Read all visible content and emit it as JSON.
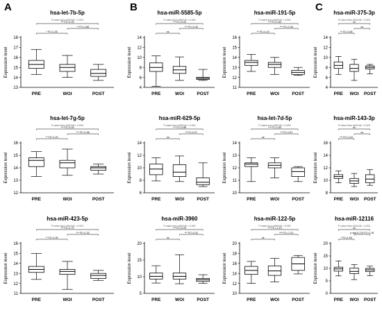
{
  "panels": [
    {
      "letter": "A"
    },
    {
      "letter": "B"
    },
    {
      "letter": "C"
    }
  ],
  "chart_data": [
    {
      "type": "boxplot",
      "title": "hsa-let-7b-5p",
      "subtitle": "P-value from ANOVA < 0.001",
      "ylabel": "Expression level",
      "categories": [
        "PRE",
        "WOI",
        "POST"
      ],
      "yticks": [
        13,
        14,
        15,
        16,
        17,
        18
      ],
      "ylim": [
        13,
        18
      ],
      "boxes": [
        [
          14.3,
          14.9,
          15.3,
          15.7,
          16.8
        ],
        [
          14.0,
          14.6,
          15.0,
          15.3,
          16.2
        ],
        [
          13.7,
          14.1,
          14.4,
          14.8,
          15.3
        ]
      ],
      "annotations": [
        "*** FC=1.92",
        "** FC=1.68",
        "* FC=1.30"
      ]
    },
    {
      "type": "boxplot",
      "title": "hsa-let-7g-5p",
      "subtitle": "P-value from ANOVA < 0.001",
      "ylabel": "Expression level",
      "categories": [
        "PRE",
        "WOI",
        "POST"
      ],
      "yticks": [
        12,
        13,
        14,
        15,
        16
      ],
      "ylim": [
        12,
        16
      ],
      "boxes": [
        [
          13.3,
          14.1,
          14.6,
          14.8,
          15.3
        ],
        [
          13.4,
          14.0,
          14.4,
          14.6,
          15.5
        ],
        [
          13.5,
          13.8,
          14.0,
          14.1,
          14.3
        ]
      ],
      "annotations": [
        "*** FC=1.93",
        "*** FC=1.56",
        "** FC=1.20"
      ]
    },
    {
      "type": "boxplot",
      "title": "hsa-miR-423-5p",
      "subtitle": "P-value from ANOVA < 0.001",
      "ylabel": "Expression level",
      "categories": [
        "PRE",
        "WOI",
        "POST"
      ],
      "yticks": [
        11,
        12,
        13,
        14,
        15,
        16
      ],
      "ylim": [
        11,
        16
      ],
      "boxes": [
        [
          12.4,
          13.1,
          13.4,
          13.7,
          15.0
        ],
        [
          11.4,
          12.9,
          13.2,
          13.4,
          14.2
        ],
        [
          12.3,
          12.5,
          12.8,
          13.0,
          13.3
        ]
      ],
      "annotations": [
        "*** FC=1.70",
        "*** FC=1.32",
        "** FC=1.30"
      ]
    },
    {
      "type": "boxplot",
      "title": "hsa-miR-5585-5p",
      "subtitle": "P-value from ANOVA < 0.001",
      "ylabel": "Expression level",
      "categories": [
        "PRE",
        "WOI",
        "POST"
      ],
      "yticks": [
        4,
        6,
        8,
        10,
        12,
        14
      ],
      "ylim": [
        4,
        14
      ],
      "boxes": [
        [
          4.2,
          7.2,
          8.0,
          8.9,
          10.3
        ],
        [
          5.4,
          6.8,
          7.5,
          8.2,
          10.1
        ],
        [
          5.4,
          5.6,
          5.8,
          6.0,
          7.6
        ]
      ],
      "annotations": [
        "*** FC=3.04",
        "*** FC=2.40",
        "ns"
      ]
    },
    {
      "type": "boxplot",
      "title": "hsa-miR-629-5p",
      "subtitle": "P-value from ANOVA < 0.001",
      "ylabel": "Expression level",
      "categories": [
        "PRE",
        "WOI",
        "POST"
      ],
      "yticks": [
        6,
        8,
        10,
        12,
        14
      ],
      "ylim": [
        6,
        14
      ],
      "boxes": [
        [
          7.9,
          8.9,
          9.8,
          10.6,
          11.6
        ],
        [
          7.8,
          8.6,
          9.3,
          10.5,
          11.9
        ],
        [
          7.0,
          7.3,
          7.7,
          8.4,
          10.8
        ]
      ],
      "annotations": [
        "*** FC=2.86",
        "** FC=2.07",
        "ns"
      ]
    },
    {
      "type": "boxplot",
      "title": "hsa-miR-3960",
      "subtitle": "P-value from ANOVA < 0.001",
      "ylabel": "Expression level",
      "categories": [
        "PRE",
        "WOI",
        "POST"
      ],
      "yticks": [
        5,
        10,
        15,
        20
      ],
      "ylim": [
        5,
        20
      ],
      "boxes": [
        [
          8.1,
          9.3,
          10.1,
          11.1,
          13.3
        ],
        [
          7.9,
          9.3,
          10.1,
          11.1,
          16.6
        ],
        [
          8.0,
          8.6,
          9.1,
          9.5,
          10.6
        ]
      ],
      "annotations": [
        "*** FC=2.03",
        "*** FC=2.02",
        "ns"
      ]
    },
    {
      "type": "boxplot",
      "title": "hsa-miR-191-5p",
      "subtitle": "P-value from ANOVA < 0.001",
      "ylabel": "Expression level",
      "categories": [
        "PRE",
        "WOI",
        "POST"
      ],
      "yticks": [
        11,
        12,
        13,
        14,
        15,
        16
      ],
      "ylim": [
        11,
        16
      ],
      "boxes": [
        [
          12.6,
          13.2,
          13.5,
          13.7,
          14.3
        ],
        [
          12.3,
          13.0,
          13.3,
          13.5,
          14.0
        ],
        [
          12.2,
          12.3,
          12.5,
          12.7,
          13.0
        ]
      ],
      "annotations": [
        "*** FC=1.83",
        "*** FC=1.54",
        "** FC=1.19"
      ]
    },
    {
      "type": "boxplot",
      "title": "hsa-let-7d-5p",
      "subtitle": "P-value from ANOVA < 0.001",
      "ylabel": "Expression level",
      "categories": [
        "PRE",
        "WOI",
        "POST"
      ],
      "yticks": [
        10,
        11,
        12,
        13,
        14
      ],
      "ylim": [
        10,
        14
      ],
      "boxes": [
        [
          10.9,
          12.1,
          12.3,
          12.4,
          12.8
        ],
        [
          11.2,
          12.0,
          12.2,
          12.4,
          12.8
        ],
        [
          10.9,
          11.3,
          11.7,
          12.0,
          12.1
        ]
      ],
      "annotations": [
        "*** FC=1.59",
        "** FC=1.51",
        "ns"
      ]
    },
    {
      "type": "boxplot",
      "title": "hsa-miR-122-5p",
      "subtitle": "P-value from ANOVA < 0.001",
      "ylabel": "Expression level",
      "categories": [
        "PRE",
        "WOI",
        "POST"
      ],
      "yticks": [
        10,
        12,
        14,
        16,
        18,
        20
      ],
      "ylim": [
        10,
        20
      ],
      "boxes": [
        [
          12.0,
          13.8,
          14.6,
          15.4,
          16.4
        ],
        [
          12.3,
          13.6,
          14.5,
          15.5,
          17.0
        ],
        [
          13.9,
          14.6,
          15.9,
          17.2,
          17.6
        ]
      ],
      "annotations": [
        "*** FC=-2.10",
        "*** FC=-2.12",
        "ns"
      ]
    },
    {
      "type": "boxplot",
      "title": "hsa-miR-375-3p",
      "subtitle": "P-value from ANOVA = 0.001",
      "ylabel": "Expression level",
      "categories": [
        "PRE",
        "WOI",
        "POST"
      ],
      "yticks": [
        4,
        6,
        8,
        10,
        12,
        14
      ],
      "ylim": [
        4,
        14
      ],
      "boxes": [
        [
          6.6,
          7.8,
          8.4,
          9.1,
          10.2
        ],
        [
          5.4,
          7.2,
          7.8,
          8.6,
          9.6
        ],
        [
          6.7,
          7.7,
          8.0,
          8.3,
          8.6
        ]
      ],
      "annotations": [
        "ns",
        "ns",
        "** FC=1.66"
      ]
    },
    {
      "type": "boxplot",
      "title": "hsa-miR-143-3p",
      "subtitle": "P-value from ANOVA < 0.001",
      "ylabel": "Expression level",
      "categories": [
        "PRE",
        "WOI",
        "POST"
      ],
      "yticks": [
        8,
        10,
        12,
        14,
        16
      ],
      "ylim": [
        8,
        16
      ],
      "boxes": [
        [
          9.6,
          10.3,
          10.6,
          10.9,
          11.5
        ],
        [
          9.0,
          9.5,
          9.9,
          10.3,
          11.1
        ],
        [
          9.2,
          9.6,
          10.2,
          10.9,
          11.7
        ]
      ],
      "annotations": [
        "ns",
        "ns",
        "*** FC=1.61"
      ]
    },
    {
      "type": "boxplot",
      "title": "hsa-miR-12116",
      "subtitle": "P-value from ANOVA < 0.001",
      "ylabel": "Expression level",
      "categories": [
        "PRE",
        "WOI",
        "POST"
      ],
      "yticks": [
        0,
        5,
        10,
        15,
        20
      ],
      "ylim": [
        0,
        20
      ],
      "boxes": [
        [
          7.0,
          8.9,
          9.8,
          10.5,
          13.0
        ],
        [
          5.5,
          7.9,
          8.8,
          10.1,
          11.5
        ],
        [
          7.1,
          8.7,
          9.4,
          10.0,
          10.9
        ]
      ],
      "annotations": [
        "ns",
        "p-adj=0.174 FC=1.18",
        "* FC=1.54"
      ]
    }
  ]
}
